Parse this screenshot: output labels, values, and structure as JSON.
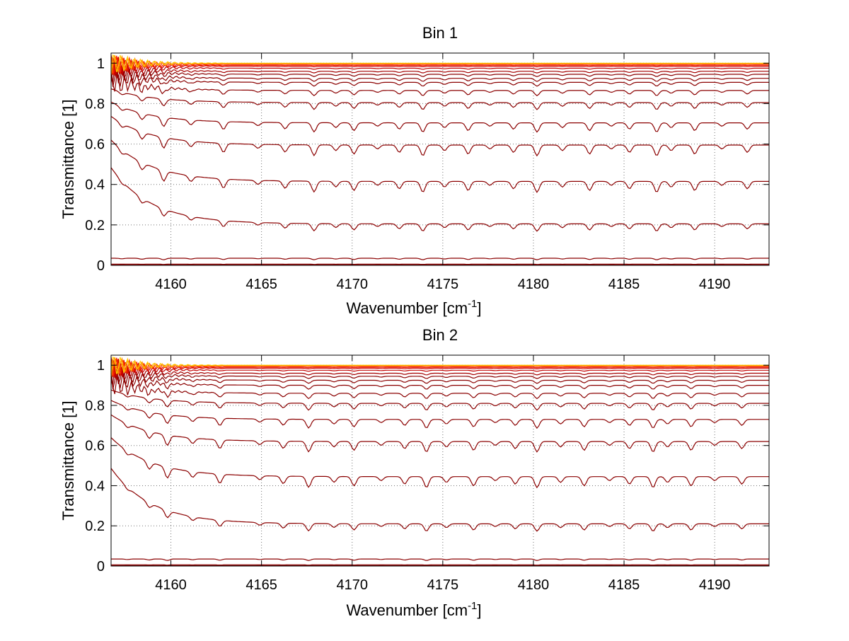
{
  "chart_data": [
    {
      "type": "line",
      "title": "Bin 1",
      "xlabel": "Wavenumber [cm",
      "xlabel_sup": "-1",
      "xlabel_close": "]",
      "ylabel": "Transmittance [1]",
      "xlim": [
        4156.7,
        4193
      ],
      "ylim": [
        0,
        1.05
      ],
      "xticks": [
        4160,
        4165,
        4170,
        4175,
        4180,
        4185,
        4190
      ],
      "yticks": [
        0,
        0.2,
        0.4,
        0.6,
        0.8,
        1
      ],
      "grid": true,
      "series_levels": [
        0.002,
        0.006,
        0.035,
        0.205,
        0.415,
        0.595,
        0.705,
        0.805,
        0.865,
        0.905,
        0.925,
        0.945,
        0.96,
        0.975,
        0.985,
        0.99,
        0.995,
        0.998,
        1.0
      ],
      "series_colors": [
        "#8b0000",
        "#8b0000",
        "#8b0000",
        "#8b0000",
        "#8b0000",
        "#8b0000",
        "#8b0000",
        "#8b0000",
        "#8b0000",
        "#8b0000",
        "#8b0000",
        "#8b0000",
        "#a50000",
        "#c00000",
        "#d40000",
        "#e81b00",
        "#ff3300",
        "#ff8c00",
        "#ffcc00"
      ],
      "absorption_lines": [
        4157.3,
        4158.4,
        4159.6,
        4161.1,
        4162.9,
        4164.8,
        4166.3,
        4167.9,
        4169.1,
        4170.1,
        4171.4,
        4172.6,
        4173.9,
        4175.1,
        4176.4,
        4177.6,
        4178.9,
        4180.2,
        4181.6,
        4183.1,
        4184.3,
        4185.3,
        4186.8,
        4187.6,
        4188.9,
        4190.4,
        4191.8
      ]
    },
    {
      "type": "line",
      "title": "Bin 2",
      "xlabel": "Wavenumber [cm",
      "xlabel_sup": "-1",
      "xlabel_close": "]",
      "ylabel": "Transmittance [1]",
      "xlim": [
        4156.7,
        4193
      ],
      "ylim": [
        0,
        1.05
      ],
      "xticks": [
        4160,
        4165,
        4170,
        4175,
        4180,
        4185,
        4190
      ],
      "yticks": [
        0,
        0.2,
        0.4,
        0.6,
        0.8,
        1
      ],
      "grid": true,
      "series_levels": [
        0.002,
        0.006,
        0.035,
        0.21,
        0.445,
        0.62,
        0.73,
        0.81,
        0.86,
        0.9,
        0.925,
        0.945,
        0.96,
        0.975,
        0.985,
        0.99,
        0.995,
        0.998,
        1.0
      ],
      "series_colors": [
        "#8b0000",
        "#8b0000",
        "#8b0000",
        "#8b0000",
        "#8b0000",
        "#8b0000",
        "#8b0000",
        "#8b0000",
        "#8b0000",
        "#8b0000",
        "#8b0000",
        "#8b0000",
        "#a50000",
        "#c00000",
        "#d40000",
        "#e81b00",
        "#ff3300",
        "#ff8c00",
        "#ffcc00"
      ],
      "absorption_lines": [
        4157.6,
        4158.8,
        4159.8,
        4161.2,
        4162.7,
        4164.9,
        4166.2,
        4167.6,
        4169.0,
        4170.1,
        4171.6,
        4172.9,
        4174.1,
        4175.2,
        4176.7,
        4177.9,
        4179.0,
        4180.2,
        4181.5,
        4182.8,
        4184.2,
        4185.3,
        4186.6,
        4187.4,
        4188.7,
        4190.0,
        4191.5
      ]
    }
  ]
}
